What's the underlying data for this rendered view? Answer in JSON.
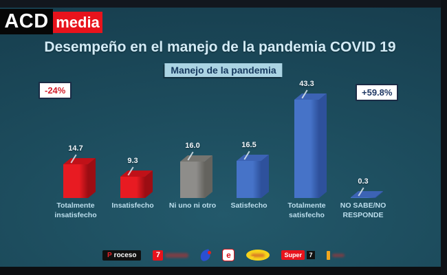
{
  "brand": {
    "name": "ACD",
    "suffix": "media"
  },
  "chart_data": {
    "type": "bar",
    "style": "3d-column",
    "title": "Desempeño en el manejo de la pandemia COVID 19",
    "subtitle": "Manejo de la pandemia",
    "categories": [
      "Totalmente insatisfecho",
      "Insatisfecho",
      "Ni uno ni otro",
      "Satisfecho",
      "Totalmente satisfecho",
      "NO SABE/NO RESPONDE"
    ],
    "values": [
      14.7,
      9.3,
      16.0,
      16.5,
      43.3,
      0.3
    ],
    "value_labels": [
      "14.7",
      "9.3",
      "16.0",
      "16.5",
      "43.3",
      "0.3"
    ],
    "bar_colors_front": [
      "#e81b22",
      "#e81b22",
      "#8e8d8a",
      "#4673c8",
      "#4673c8",
      "#4673c8"
    ],
    "bar_colors_side": [
      "#9c0d13",
      "#9c0d13",
      "#64635e",
      "#2e519c",
      "#2e519c",
      "#2e519c"
    ],
    "bar_colors_top": [
      "#c01118",
      "#c01118",
      "#767570",
      "#3c63b4",
      "#3c63b4",
      "#3c63b4"
    ],
    "annotations": [
      {
        "text": "-24%",
        "color": "#d21f2c",
        "position": "left"
      },
      {
        "text": "+59.8%",
        "color": "#1f3864",
        "position": "right"
      }
    ],
    "xlabel": "",
    "ylabel": "",
    "ylim": [
      0,
      50
    ],
    "grid": false,
    "legend": false,
    "data_labels": true,
    "background": "#1d4d5e"
  },
  "footer": {
    "logos": {
      "proceso": {
        "first_letter": "P",
        "rest": "roceso"
      },
      "canal7": {
        "digit": "7"
      },
      "e_logo": {
        "letter": "e"
      },
      "super7": {
        "word": "Super",
        "digit": "7"
      }
    }
  }
}
